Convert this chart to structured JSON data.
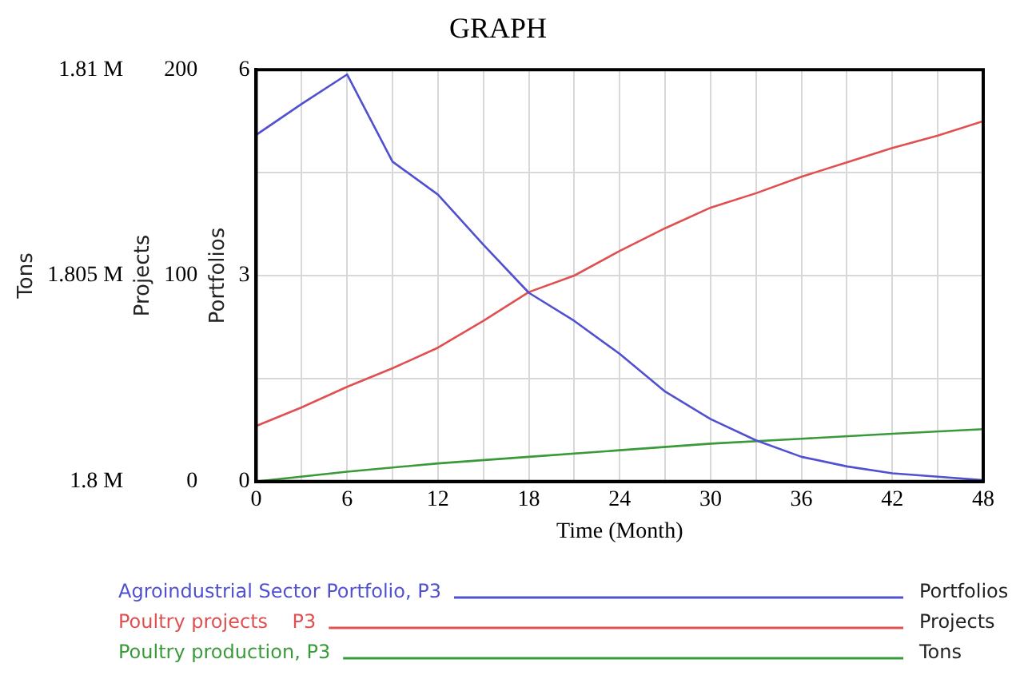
{
  "chart_data": {
    "type": "line",
    "title": "GRAPH",
    "xlabel": "Time (Month)",
    "ylabel": "Portfolios",
    "y2label": "Projects",
    "y3label": "Tons",
    "xlim": [
      0,
      48
    ],
    "xticks": [
      0,
      {
        "value": 3,
        "label": null
      },
      6,
      {
        "value": 9,
        "label": null
      },
      12,
      {
        "value": 15,
        "label": null
      },
      18,
      {
        "value": 21,
        "label": null
      },
      24,
      {
        "value": 27,
        "label": null
      },
      30,
      {
        "value": 33,
        "label": null
      },
      36,
      {
        "value": 39,
        "label": null
      },
      42,
      {
        "value": 45,
        "label": null
      },
      48
    ],
    "ylim": [
      0,
      6
    ],
    "yticks": [
      0,
      {
        "value": 1.5,
        "label": null
      },
      3,
      {
        "value": 4.5,
        "label": null
      },
      6
    ],
    "y2lim": [
      0,
      200
    ],
    "y2ticks": [
      0,
      100,
      200
    ],
    "y3lim": [
      1800000,
      1810000
    ],
    "y3ticks": [
      {
        "value": 1800000,
        "label": "1.8 M"
      },
      {
        "value": 1805000,
        "label": "1.805 M"
      },
      {
        "value": 1810000,
        "label": "1.81 M"
      }
    ],
    "x": [
      0,
      3,
      6,
      9,
      12,
      15,
      18,
      21,
      24,
      27,
      30,
      33,
      36,
      39,
      42,
      45,
      48
    ],
    "series": [
      {
        "name": "Agroindustrial Sector Portfolio, P3",
        "color": "#5050d0",
        "values": [
          5.05,
          5.5,
          5.93,
          4.66,
          4.18,
          3.45,
          2.75,
          2.34,
          1.86,
          1.31,
          0.91,
          0.6,
          0.36,
          0.22,
          0.12,
          0.07,
          0.02
        ]
      },
      {
        "name": "Poultry projects    P3",
        "color": "#e05050",
        "axis": "y2",
        "values": [
          27,
          36,
          46,
          55,
          65,
          78,
          92,
          100,
          112,
          123,
          133,
          140,
          148,
          155,
          162,
          168,
          175
        ]
      },
      {
        "name": "Poultry production, P3",
        "color": "#3a9a3a",
        "axis": "y3",
        "x": [
          0,
          6,
          12,
          18,
          24,
          30,
          36,
          42,
          48
        ],
        "values": [
          1800000,
          1800240,
          1800440,
          1800600,
          1800760,
          1800920,
          1801040,
          1801160,
          1801270
        ]
      }
    ],
    "grid": true,
    "legend": "bottom",
    "marker": "none",
    "line_style": "solid"
  }
}
